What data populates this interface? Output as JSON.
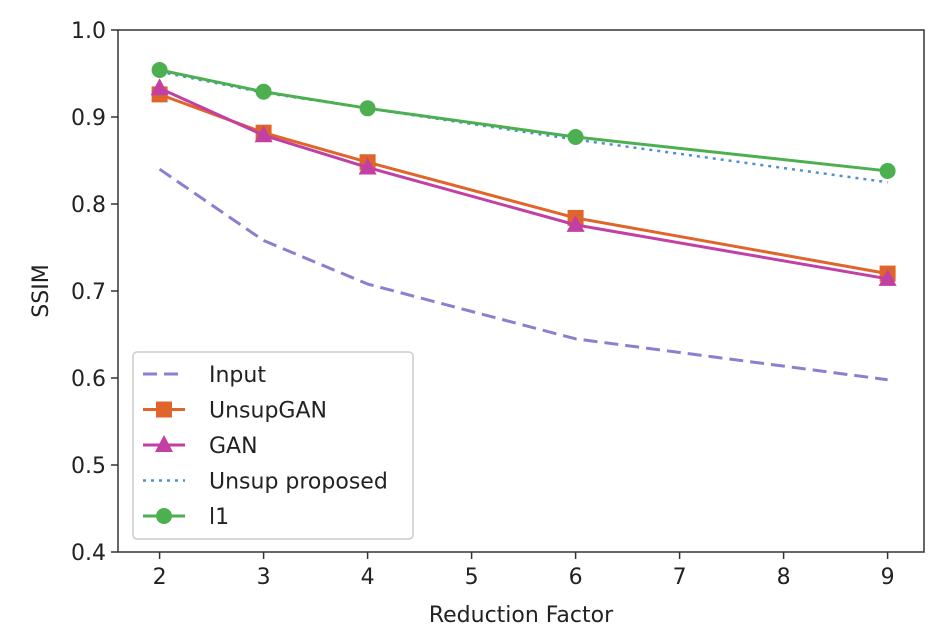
{
  "chart_data": {
    "type": "line",
    "title": "",
    "xlabel": "Reduction Factor",
    "ylabel": "SSIM",
    "xlim": [
      1.6,
      9.35
    ],
    "ylim": [
      0.4,
      1.0
    ],
    "xticks": [
      2,
      3,
      4,
      5,
      6,
      7,
      8,
      9
    ],
    "yticks": [
      0.4,
      0.5,
      0.6,
      0.7,
      0.8,
      0.9,
      1.0
    ],
    "xtick_labels": [
      "2",
      "3",
      "4",
      "5",
      "6",
      "7",
      "8",
      "9"
    ],
    "ytick_labels": [
      "0.4",
      "0.5",
      "0.6",
      "0.7",
      "0.8",
      "0.9",
      "1.0"
    ],
    "grid": false,
    "legend_position": "lower-left",
    "x": [
      2,
      3,
      4,
      6,
      9
    ],
    "series": [
      {
        "name": "Input",
        "values": [
          0.84,
          0.758,
          0.708,
          0.645,
          0.598
        ],
        "color": "#8c7fd0",
        "linestyle": "dashed",
        "marker": "none"
      },
      {
        "name": "UnsupGAN",
        "values": [
          0.926,
          0.882,
          0.848,
          0.784,
          0.72
        ],
        "color": "#e0652a",
        "linestyle": "solid",
        "marker": "square"
      },
      {
        "name": "GAN",
        "values": [
          0.933,
          0.879,
          0.842,
          0.776,
          0.714
        ],
        "color": "#c23fa3",
        "linestyle": "solid",
        "marker": "triangle"
      },
      {
        "name": "Unsup proposed",
        "values": [
          0.952,
          0.928,
          0.91,
          0.874,
          0.825
        ],
        "color": "#4f8fd0",
        "linestyle": "dotted",
        "marker": "none"
      },
      {
        "name": "l1",
        "values": [
          0.954,
          0.929,
          0.91,
          0.877,
          0.838
        ],
        "color": "#4caf50",
        "linestyle": "solid",
        "marker": "circle"
      }
    ]
  }
}
